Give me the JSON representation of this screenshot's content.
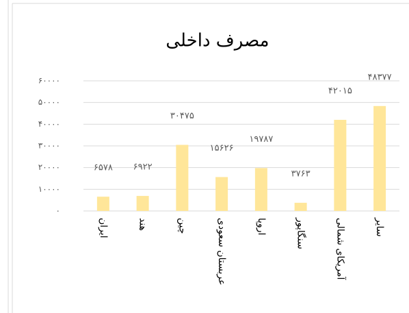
{
  "chart_data": {
    "type": "bar",
    "title": "مصرف داخلی",
    "categories": [
      "ایران",
      "هند",
      "چین",
      "عربستان سعودی",
      "اروپا",
      "سنگاپور",
      "آمریکای شمالی",
      "سایر"
    ],
    "values": [
      6578,
      6922,
      30475,
      15626,
      19787,
      3763,
      42015,
      48377
    ],
    "value_labels": [
      "۶۵۷۸",
      "۶۹۲۲",
      "۳۰۴۷۵",
      "۱۵۶۲۶",
      "۱۹۷۸۷",
      "۳۷۶۳",
      "۴۲۰۱۵",
      "۴۸۳۷۷"
    ],
    "color": "#ffe699",
    "ylim": [
      0,
      60000
    ],
    "yticks": [
      {
        "value": 0,
        "label": "۰"
      },
      {
        "value": 10000,
        "label": "۱۰۰۰۰"
      },
      {
        "value": 20000,
        "label": "۲۰۰۰۰"
      },
      {
        "value": 30000,
        "label": "۳۰۰۰۰"
      },
      {
        "value": 40000,
        "label": "۴۰۰۰۰"
      },
      {
        "value": 50000,
        "label": "۵۰۰۰۰"
      },
      {
        "value": 60000,
        "label": "۶۰۰۰۰"
      }
    ],
    "grid": true
  }
}
